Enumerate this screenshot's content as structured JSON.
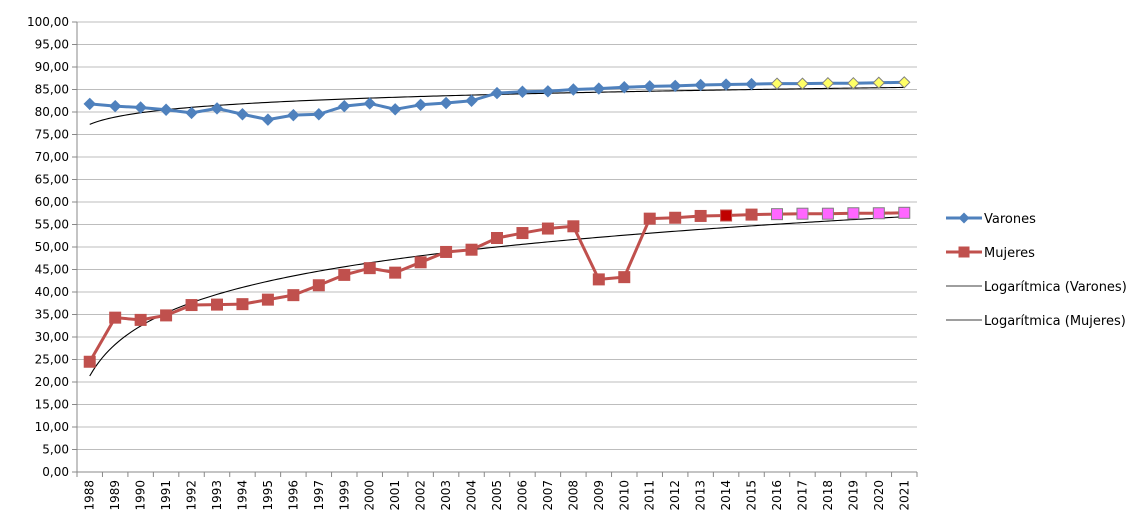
{
  "chart_data": {
    "type": "line",
    "categories": [
      "1988",
      "1989",
      "1990",
      "1991",
      "1992",
      "1993",
      "1994",
      "1995",
      "1996",
      "1997",
      "1999",
      "2000",
      "2001",
      "2002",
      "2003",
      "2004",
      "2005",
      "2006",
      "2007",
      "2008",
      "2009",
      "2010",
      "2011",
      "2012",
      "2013",
      "2014",
      "2015",
      "2016",
      "2017",
      "2018",
      "2019",
      "2020",
      "2021"
    ],
    "ylim": [
      0,
      100
    ],
    "ytick_labels": [
      "0,00",
      "5,00",
      "10,00",
      "15,00",
      "20,00",
      "25,00",
      "30,00",
      "35,00",
      "40,00",
      "45,00",
      "50,00",
      "55,00",
      "60,00",
      "65,00",
      "70,00",
      "75,00",
      "80,00",
      "85,00",
      "90,00",
      "95,00",
      "100,00"
    ],
    "grid": true,
    "legend_position": "right",
    "series": [
      {
        "name": "Varones",
        "color": "#4f81bd",
        "marker": "diamond",
        "values": [
          81.8,
          81.3,
          81.0,
          80.5,
          79.8,
          80.8,
          79.5,
          78.3,
          79.3,
          79.5,
          81.3,
          81.9,
          80.6,
          81.6,
          82.0,
          82.5,
          84.2,
          84.5,
          84.6,
          85.0,
          85.2,
          85.5,
          85.7,
          85.8,
          86.0,
          86.1,
          86.2,
          86.3,
          86.3,
          86.4,
          86.4,
          86.5,
          86.6
        ],
        "highlight_from_index": 27,
        "highlight_color": "#ffff66"
      },
      {
        "name": "Mujeres",
        "color": "#c0504d",
        "marker": "square",
        "values": [
          24.5,
          34.3,
          33.8,
          34.8,
          37.1,
          37.2,
          37.3,
          38.3,
          39.3,
          41.5,
          43.8,
          45.3,
          44.3,
          46.6,
          48.9,
          49.4,
          52.0,
          53.1,
          54.1,
          54.6,
          42.8,
          43.3,
          56.3,
          56.5,
          56.9,
          57.0,
          57.2,
          57.3,
          57.4,
          57.4,
          57.5,
          57.5,
          57.6
        ],
        "dark_index": 25,
        "dark_color": "#c00000",
        "highlight_from_index": 27,
        "highlight_color": "#ff66ff"
      },
      {
        "name": "Logarítmica (Varones)",
        "color": "#000000",
        "trend_of": "Varones"
      },
      {
        "name": "Logarítmica (Mujeres)",
        "color": "#000000",
        "trend_of": "Mujeres"
      }
    ]
  }
}
